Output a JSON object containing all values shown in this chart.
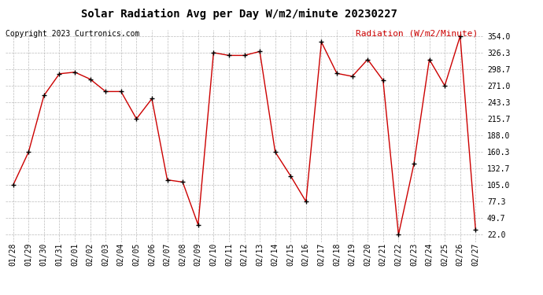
{
  "title": "Solar Radiation Avg per Day W/m2/minute 20230227",
  "copyright": "Copyright 2023 Curtronics.com",
  "legend_label": "Radiation (W/m2/Minute)",
  "dates": [
    "01/28",
    "01/29",
    "01/30",
    "01/31",
    "02/01",
    "02/02",
    "02/03",
    "02/04",
    "02/05",
    "02/06",
    "02/07",
    "02/08",
    "02/09",
    "02/10",
    "02/11",
    "02/12",
    "02/13",
    "02/14",
    "02/15",
    "02/16",
    "02/17",
    "02/18",
    "02/19",
    "02/20",
    "02/21",
    "02/22",
    "02/23",
    "02/24",
    "02/25",
    "02/26",
    "02/27"
  ],
  "values": [
    105.0,
    160.3,
    254.7,
    291.0,
    293.7,
    282.0,
    261.3,
    261.3,
    215.7,
    249.3,
    113.7,
    110.0,
    38.7,
    326.3,
    321.7,
    321.7,
    328.3,
    160.3,
    120.3,
    77.3,
    344.0,
    291.7,
    286.7,
    315.0,
    280.0,
    22.0,
    140.3,
    315.0,
    271.0,
    354.0,
    30.0
  ],
  "line_color": "#cc0000",
  "marker_color": "#000000",
  "bg_color": "#ffffff",
  "grid_color": "#bbbbbb",
  "title_fontsize": 10,
  "copyright_fontsize": 7,
  "legend_fontsize": 8,
  "tick_fontsize": 7,
  "ytick_labels": [
    22.0,
    49.7,
    77.3,
    105.0,
    132.7,
    160.3,
    188.0,
    215.7,
    243.3,
    271.0,
    298.7,
    326.3,
    354.0
  ],
  "ylim_min": 10.0,
  "ylim_max": 365.0,
  "legend_color": "#cc0000"
}
